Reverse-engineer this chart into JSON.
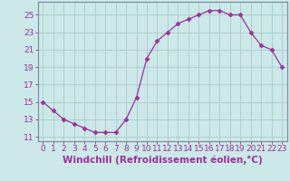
{
  "x": [
    0,
    1,
    2,
    3,
    4,
    5,
    6,
    7,
    8,
    9,
    10,
    11,
    12,
    13,
    14,
    15,
    16,
    17,
    18,
    19,
    20,
    21,
    22,
    23
  ],
  "y": [
    15,
    14,
    13,
    12.5,
    12,
    11.5,
    11.5,
    11.5,
    13,
    15.5,
    20,
    22,
    23,
    24,
    24.5,
    25,
    25.5,
    25.5,
    25,
    25,
    23,
    21.5,
    21,
    19
  ],
  "line_color": "#993399",
  "marker_color": "#993399",
  "bg_color": "#cce8e8",
  "grid_color": "#aacccc",
  "xlabel": "Windchill (Refroidissement éolien,°C)",
  "ylabel_ticks": [
    11,
    13,
    15,
    17,
    19,
    21,
    23,
    25
  ],
  "ylim": [
    10.5,
    26.5
  ],
  "xlim": [
    -0.5,
    23.5
  ],
  "font_color": "#993399",
  "tick_fontsize": 6.5,
  "xlabel_fontsize": 7.5
}
